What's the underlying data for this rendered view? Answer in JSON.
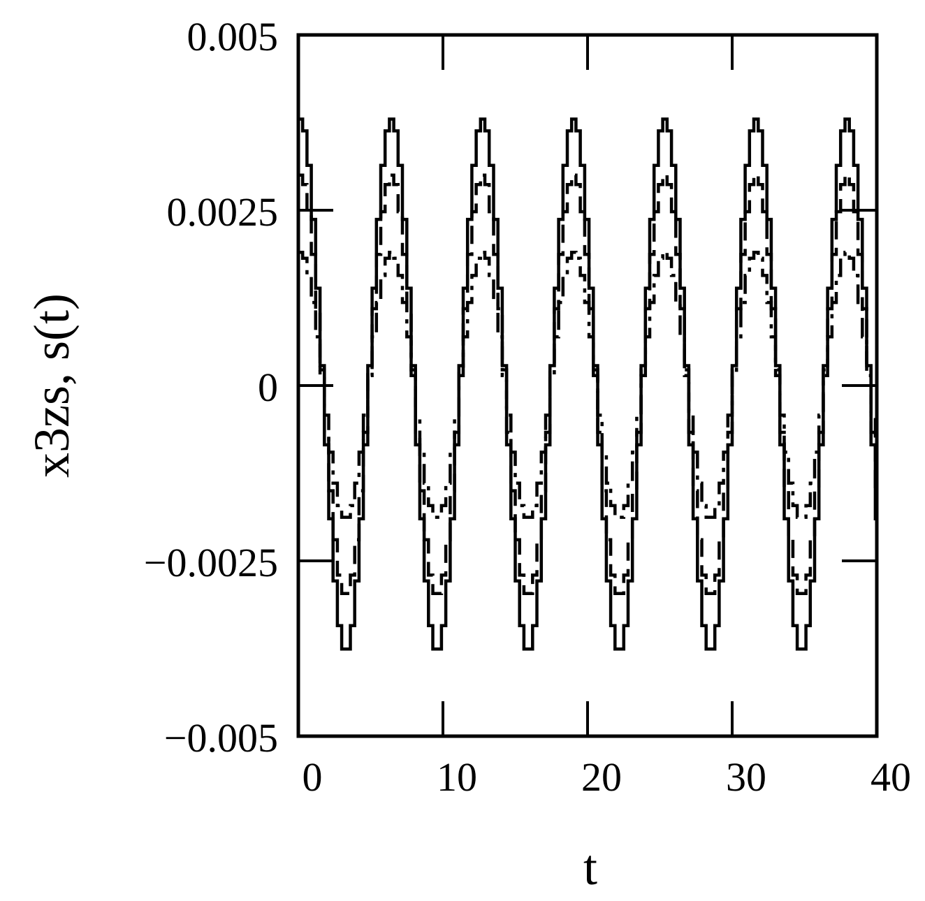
{
  "chart_data": {
    "type": "line",
    "xlabel": "t",
    "ylabel": "x3zs, s(t)",
    "xlim": [
      0,
      40
    ],
    "ylim": [
      -0.005,
      0.005
    ],
    "x_ticks": [
      0,
      10,
      20,
      30,
      40
    ],
    "x_tick_labels": [
      "0",
      "10",
      "20",
      "30",
      "40"
    ],
    "y_ticks": [
      0.005,
      0.0025,
      0,
      -0.0025,
      -0.005
    ],
    "y_tick_labels": [
      "0.005",
      "0.0025",
      "0",
      "−0.0025",
      "−0.005"
    ],
    "grid": false,
    "legend": false,
    "line_colors": [
      "#000000"
    ],
    "series": [
      {
        "style": "solid",
        "waveform": "cos",
        "amplitude": 0.0038,
        "period": 6.3,
        "phase": 0.0,
        "step": 0.3,
        "t_start": 0,
        "t_end": 40
      },
      {
        "style": "dashed",
        "waveform": "cos",
        "amplitude": 0.003,
        "period": 6.3,
        "phase": 0.0,
        "step": 0.3,
        "t_start": 0,
        "t_end": 40
      },
      {
        "style": "dash-dot",
        "waveform": "cos",
        "amplitude": 0.0019,
        "period": 6.3,
        "phase": 0.0,
        "step": 0.3,
        "t_start": 0,
        "t_end": 40
      }
    ]
  }
}
